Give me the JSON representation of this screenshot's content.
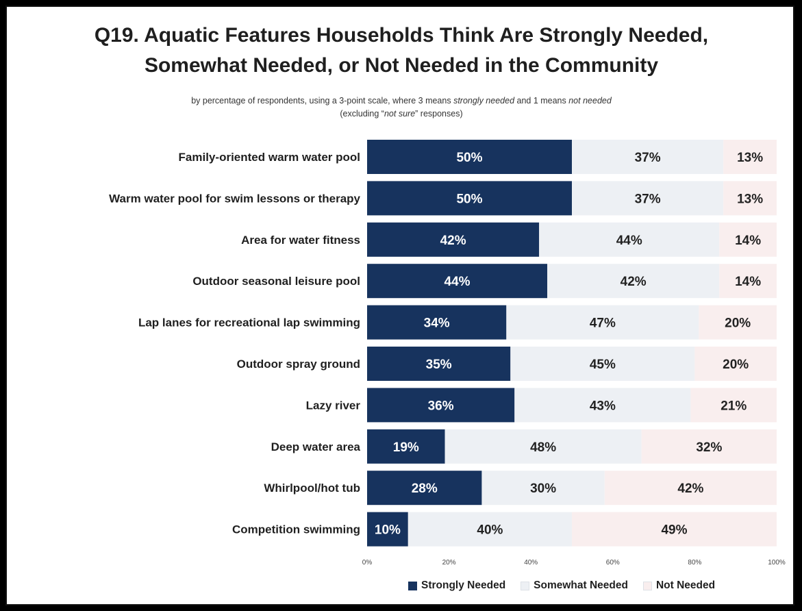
{
  "title_line1": "Q19. Aquatic Features Households Think Are Strongly Needed,",
  "title_line2": "Somewhat Needed, or Not Needed in the Community",
  "subtitle": {
    "line1_a": "by percentage of respondents, using a 3-point scale, where 3 means ",
    "line1_b": "strongly needed",
    "line1_c": " and 1 means ",
    "line1_d": "not needed",
    "line2_a": "(excluding “",
    "line2_b": "not sure",
    "line2_c": "” responses)"
  },
  "colors": {
    "strongly": "#17335e",
    "somewhat": "#edf0f4",
    "not": "#f9eeee",
    "label_on_dark": "#ffffff",
    "label_on_light": "#222222"
  },
  "chart_data": {
    "type": "bar",
    "orientation": "horizontal-stacked-100",
    "categories": [
      "Family-oriented warm water pool",
      "Warm water pool for swim lessons or therapy",
      "Area for water fitness",
      "Outdoor seasonal leisure pool",
      "Lap lanes for recreational lap swimming",
      "Outdoor spray ground",
      "Lazy river",
      "Deep water area",
      "Whirlpool/hot tub",
      "Competition swimming"
    ],
    "series": [
      {
        "name": "Strongly Needed",
        "values": [
          50,
          50,
          42,
          44,
          34,
          35,
          36,
          19,
          28,
          10
        ]
      },
      {
        "name": "Somewhat Needed",
        "values": [
          37,
          37,
          44,
          42,
          47,
          45,
          43,
          48,
          30,
          40
        ]
      },
      {
        "name": "Not Needed",
        "values": [
          13,
          13,
          14,
          14,
          20,
          20,
          21,
          32,
          42,
          49
        ]
      }
    ],
    "xlim": [
      0,
      100
    ],
    "x_ticks": [
      "0%",
      "20%",
      "40%",
      "60%",
      "80%",
      "100%"
    ],
    "value_suffix": "%",
    "legend_position": "bottom-right",
    "grid": false
  }
}
